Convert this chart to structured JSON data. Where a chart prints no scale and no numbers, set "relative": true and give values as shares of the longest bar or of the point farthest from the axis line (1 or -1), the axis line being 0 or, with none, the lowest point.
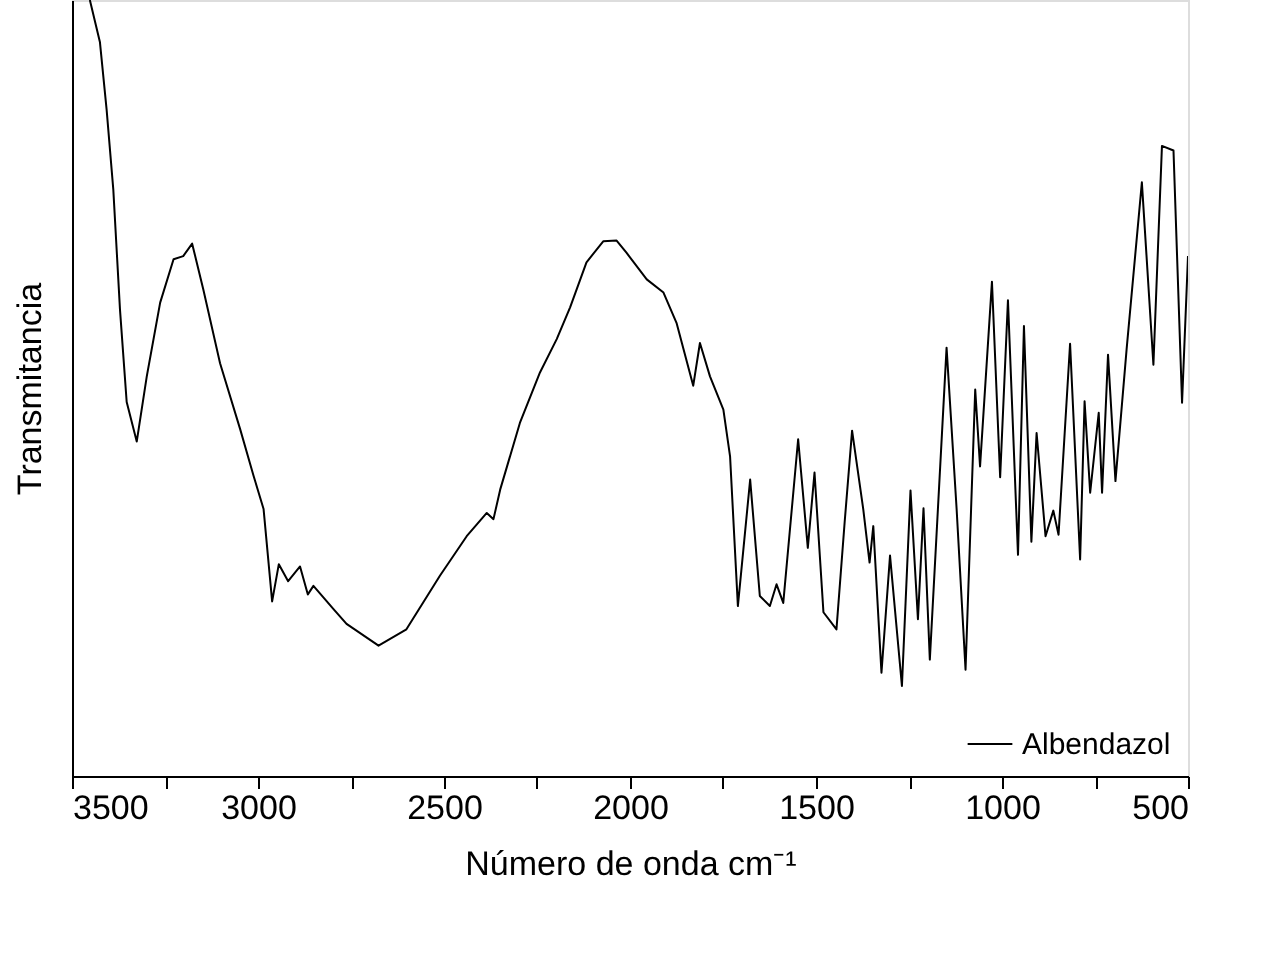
{
  "chart_data": {
    "type": "line",
    "xlabel": "Número de onda  cm⁻¹",
    "ylabel": "Transmitancia",
    "relative": true,
    "xlim": [
      3500,
      500
    ],
    "xticks": [
      3500,
      {
        "value": 3250,
        "label": null
      },
      3000,
      {
        "value": 2750,
        "label": null
      },
      2500,
      {
        "value": 2250,
        "label": null
      },
      2000,
      {
        "value": 1750,
        "label": null
      },
      1500,
      {
        "value": 1250,
        "label": null
      },
      1000,
      {
        "value": 750,
        "label": null
      },
      500
    ],
    "legend": "bottom right",
    "grid": false,
    "marker": "none",
    "line_style": "solid",
    "series": [
      {
        "name": "Albendazol",
        "color": "#000000",
        "x": [
          3452,
          3425,
          3407,
          3389,
          3371,
          3353,
          3326,
          3299,
          3263,
          3227,
          3201,
          3177,
          3147,
          3102,
          3048,
          3012,
          2985,
          2962,
          2944,
          2919,
          2887,
          2866,
          2851,
          2797,
          2762,
          2676,
          2601,
          2511,
          2439,
          2385,
          2367,
          2349,
          2296,
          2242,
          2197,
          2161,
          2117,
          2072,
          2036,
          2009,
          1955,
          1910,
          1875,
          1830,
          1812,
          1785,
          1749,
          1731,
          1710,
          1677,
          1651,
          1624,
          1606,
          1588,
          1548,
          1522,
          1504,
          1480,
          1445,
          1423,
          1403,
          1373,
          1356,
          1346,
          1324,
          1301,
          1269,
          1246,
          1226,
          1211,
          1194,
          1149,
          1122,
          1098,
          1072,
          1059,
          1027,
          1005,
          984,
          957,
          941,
          921,
          907,
          883,
          862,
          848,
          817,
          790,
          778,
          763,
          740,
          731,
          715,
          695,
          665,
          624,
          593,
          570,
          539,
          516,
          500
        ],
        "values": [
          1.0,
          0.946,
          0.859,
          0.756,
          0.601,
          0.482,
          0.431,
          0.515,
          0.61,
          0.666,
          0.67,
          0.686,
          0.627,
          0.532,
          0.447,
          0.387,
          0.344,
          0.225,
          0.273,
          0.251,
          0.27,
          0.234,
          0.245,
          0.215,
          0.196,
          0.168,
          0.189,
          0.258,
          0.309,
          0.339,
          0.331,
          0.369,
          0.455,
          0.52,
          0.563,
          0.604,
          0.662,
          0.689,
          0.69,
          0.674,
          0.64,
          0.623,
          0.584,
          0.503,
          0.558,
          0.515,
          0.472,
          0.412,
          0.219,
          0.382,
          0.232,
          0.219,
          0.247,
          0.223,
          0.434,
          0.294,
          0.391,
          0.211,
          0.189,
          0.327,
          0.445,
          0.344,
          0.275,
          0.322,
          0.133,
          0.284,
          0.116,
          0.368,
          0.202,
          0.345,
          0.15,
          0.552,
          0.344,
          0.137,
          0.498,
          0.399,
          0.637,
          0.385,
          0.613,
          0.285,
          0.58,
          0.302,
          0.442,
          0.309,
          0.342,
          0.311,
          0.557,
          0.279,
          0.483,
          0.365,
          0.468,
          0.365,
          0.543,
          0.38,
          0.55,
          0.765,
          0.53,
          0.812,
          0.806,
          0.481,
          0.67
        ]
      }
    ]
  }
}
